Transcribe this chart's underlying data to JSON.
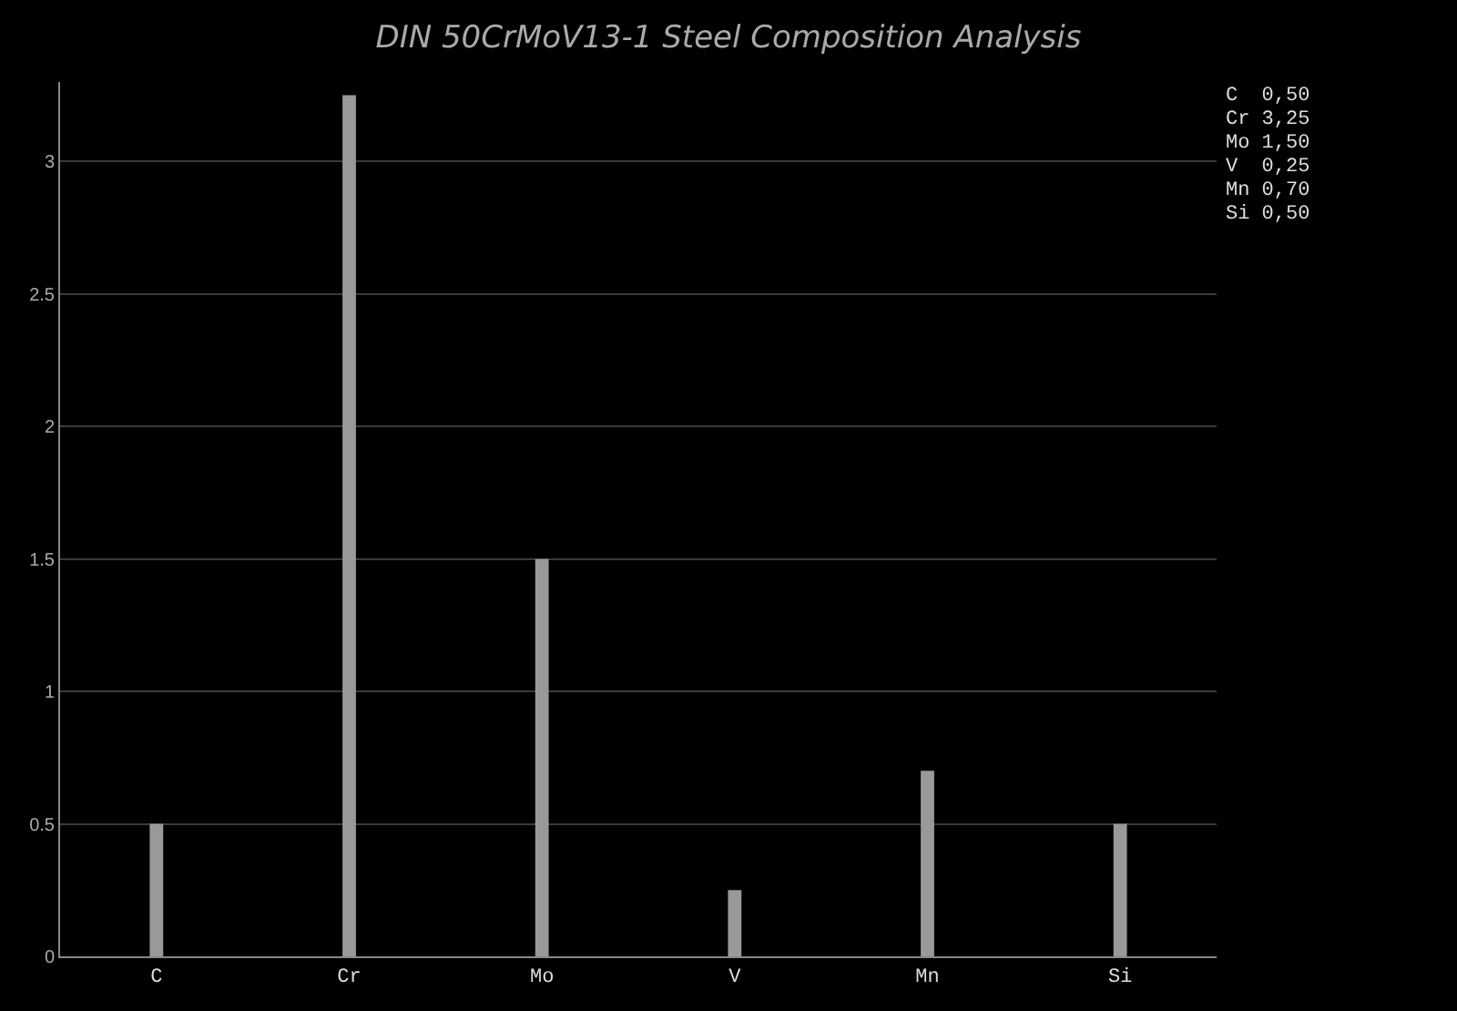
{
  "chart_data": {
    "type": "bar",
    "title": "DIN 50CrMoV13-1 Steel Composition Analysis",
    "categories": [
      "C",
      "Cr",
      "Mo",
      "V",
      "Mn",
      "Si"
    ],
    "values": [
      0.5,
      3.25,
      1.5,
      0.25,
      0.7,
      0.5
    ],
    "color": "#999999",
    "ylim": [
      0,
      3.3
    ],
    "yticks": [
      0,
      0.5,
      1,
      1.5,
      2,
      2.5,
      3
    ],
    "grid": "y",
    "annotations": [
      "C  0,50",
      "Cr 3,25",
      "Mo 1,50",
      "V  0,25",
      "Mn 0,70",
      "Si 0,50"
    ]
  }
}
